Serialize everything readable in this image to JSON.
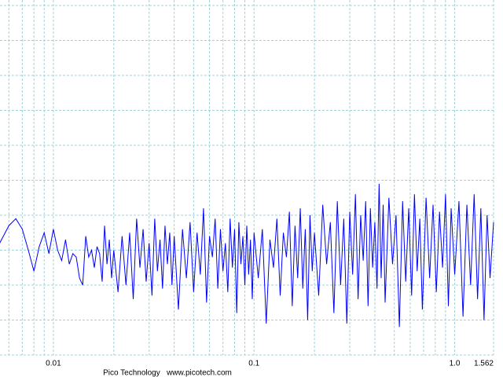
{
  "chart_data": {
    "type": "line",
    "log_x": true,
    "grid": true,
    "color": "#0000ff",
    "grid_color": "#9fd3d8",
    "footer": "Pico Technology   www.picotech.com",
    "xlim": [
      0.00542,
      1.562
    ],
    "xticks": [
      0.01,
      0.1,
      {
        "value": 1,
        "label": "1.0"
      },
      1.562
    ],
    "xminorticks": [
      0.006,
      0.007,
      0.008,
      0.009,
      0.02,
      0.03,
      0.04,
      0.05,
      0.06,
      0.07,
      0.08,
      0.09,
      0.2,
      0.3,
      0.4,
      0.5,
      0.6,
      0.7,
      0.8,
      0.9
    ],
    "ylim": [
      0,
      10
    ],
    "yticks": [
      0,
      1,
      2,
      3,
      4,
      5,
      6,
      7,
      8,
      9,
      10
    ],
    "x": [
      0.0054,
      0.006,
      0.0065,
      0.007,
      0.0075,
      0.008,
      0.0085,
      0.009,
      0.0095,
      0.01,
      0.0105,
      0.011,
      0.0115,
      0.012,
      0.0125,
      0.013,
      0.0135,
      0.014,
      0.0145,
      0.015,
      0.0155,
      0.016,
      0.0165,
      0.017,
      0.0175,
      0.018,
      0.0185,
      0.019,
      0.0195,
      0.02,
      0.021,
      0.022,
      0.023,
      0.024,
      0.025,
      0.026,
      0.027,
      0.028,
      0.029,
      0.03,
      0.031,
      0.032,
      0.033,
      0.034,
      0.035,
      0.036,
      0.037,
      0.038,
      0.039,
      0.04,
      0.042,
      0.044,
      0.046,
      0.048,
      0.05,
      0.052,
      0.054,
      0.056,
      0.058,
      0.06,
      0.062,
      0.064,
      0.066,
      0.068,
      0.07,
      0.072,
      0.074,
      0.076,
      0.078,
      0.08,
      0.082,
      0.084,
      0.086,
      0.088,
      0.09,
      0.092,
      0.094,
      0.096,
      0.098,
      0.1,
      0.105,
      0.11,
      0.115,
      0.12,
      0.125,
      0.13,
      0.135,
      0.14,
      0.145,
      0.15,
      0.155,
      0.16,
      0.165,
      0.17,
      0.175,
      0.18,
      0.185,
      0.19,
      0.195,
      0.2,
      0.21,
      0.22,
      0.23,
      0.24,
      0.25,
      0.26,
      0.27,
      0.28,
      0.29,
      0.3,
      0.31,
      0.32,
      0.33,
      0.34,
      0.35,
      0.36,
      0.37,
      0.38,
      0.39,
      0.4,
      0.41,
      0.42,
      0.43,
      0.44,
      0.45,
      0.47,
      0.49,
      0.51,
      0.53,
      0.55,
      0.57,
      0.59,
      0.61,
      0.63,
      0.65,
      0.67,
      0.69,
      0.72,
      0.75,
      0.78,
      0.81,
      0.84,
      0.87,
      0.9,
      0.93,
      0.96,
      1.0,
      1.05,
      1.1,
      1.15,
      1.2,
      1.25,
      1.3,
      1.35,
      1.4,
      1.45,
      1.5,
      1.562
    ],
    "values": [
      3.2,
      3.7,
      3.9,
      3.6,
      3.0,
      2.4,
      3.1,
      3.5,
      2.9,
      3.6,
      3.0,
      2.7,
      3.3,
      2.6,
      2.9,
      2.8,
      2.2,
      2.0,
      3.4,
      2.8,
      3.0,
      2.5,
      3.1,
      2.9,
      2.1,
      3.7,
      2.6,
      3.3,
      2.2,
      3.0,
      1.8,
      3.4,
      2.0,
      3.5,
      1.6,
      3.9,
      2.5,
      3.6,
      2.1,
      3.2,
      1.7,
      3.9,
      2.4,
      3.3,
      1.9,
      3.7,
      2.6,
      3.5,
      2.0,
      3.4,
      1.3,
      3.6,
      2.2,
      3.8,
      1.8,
      3.5,
      2.3,
      4.2,
      1.5,
      3.4,
      2.8,
      3.9,
      1.9,
      3.6,
      2.4,
      3.2,
      1.8,
      3.9,
      2.5,
      3.6,
      1.2,
      3.8,
      2.6,
      3.4,
      2.0,
      3.7,
      2.3,
      3.3,
      1.6,
      3.5,
      2.2,
      3.6,
      0.9,
      3.3,
      2.5,
      3.9,
      1.7,
      3.5,
      2.8,
      4.1,
      1.4,
      3.7,
      2.2,
      4.2,
      1.9,
      3.6,
      1.0,
      4.0,
      2.4,
      3.5,
      1.7,
      4.3,
      2.6,
      3.8,
      1.2,
      4.4,
      2.0,
      3.9,
      0.9,
      4.1,
      2.3,
      4.6,
      1.6,
      4.0,
      2.7,
      4.4,
      1.4,
      4.2,
      2.5,
      3.8,
      1.9,
      4.9,
      2.2,
      4.3,
      1.5,
      4.5,
      2.6,
      4.0,
      0.8,
      4.4,
      2.1,
      4.2,
      1.7,
      4.6,
      2.4,
      3.9,
      1.3,
      4.5,
      2.2,
      4.3,
      1.8,
      4.1,
      2.5,
      4.6,
      1.4,
      4.2,
      2.3,
      4.4,
      1.1,
      4.3,
      2.0,
      4.6,
      1.6,
      4.2,
      1.0,
      4.0,
      2.2,
      3.8
    ]
  }
}
